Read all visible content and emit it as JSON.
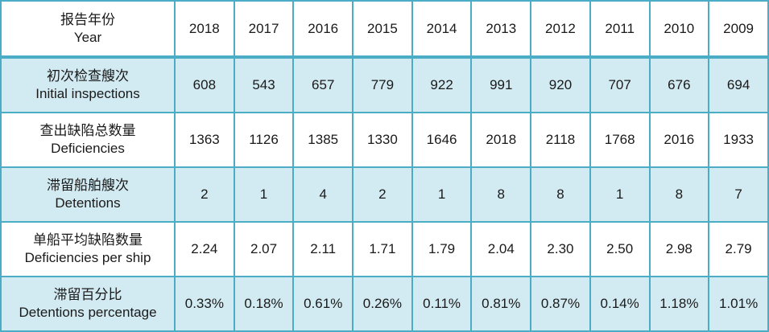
{
  "table": {
    "header": {
      "label_cn": "报告年份",
      "label_en": "Year",
      "years": [
        "2018",
        "2017",
        "2016",
        "2015",
        "2014",
        "2013",
        "2012",
        "2011",
        "2010",
        "2009"
      ]
    },
    "rows": [
      {
        "label_cn": "初次检查艘次",
        "label_en": "Initial inspections",
        "values": [
          "608",
          "543",
          "657",
          "779",
          "922",
          "991",
          "920",
          "707",
          "676",
          "694"
        ]
      },
      {
        "label_cn": "查出缺陷总数量",
        "label_en": "Deficiencies",
        "values": [
          "1363",
          "1126",
          "1385",
          "1330",
          "1646",
          "2018",
          "2118",
          "1768",
          "2016",
          "1933"
        ]
      },
      {
        "label_cn": "滞留船舶艘次",
        "label_en": "Detentions",
        "values": [
          "2",
          "1",
          "4",
          "2",
          "1",
          "8",
          "8",
          "1",
          "8",
          "7"
        ]
      },
      {
        "label_cn": "单船平均缺陷数量",
        "label_en": "Deficiencies per ship",
        "values": [
          "2.24",
          "2.07",
          "2.11",
          "1.71",
          "1.79",
          "2.04",
          "2.30",
          "2.50",
          "2.98",
          "2.79"
        ]
      },
      {
        "label_cn": "滞留百分比",
        "label_en": "Detentions percentage",
        "values": [
          "0.33%",
          "0.18%",
          "0.61%",
          "0.26%",
          "0.11%",
          "0.81%",
          "0.87%",
          "0.14%",
          "1.18%",
          "1.01%"
        ]
      }
    ],
    "colors": {
      "border": "#4bacc6",
      "shaded_row": "#d2eaf1",
      "plain_row": "#ffffff"
    }
  }
}
